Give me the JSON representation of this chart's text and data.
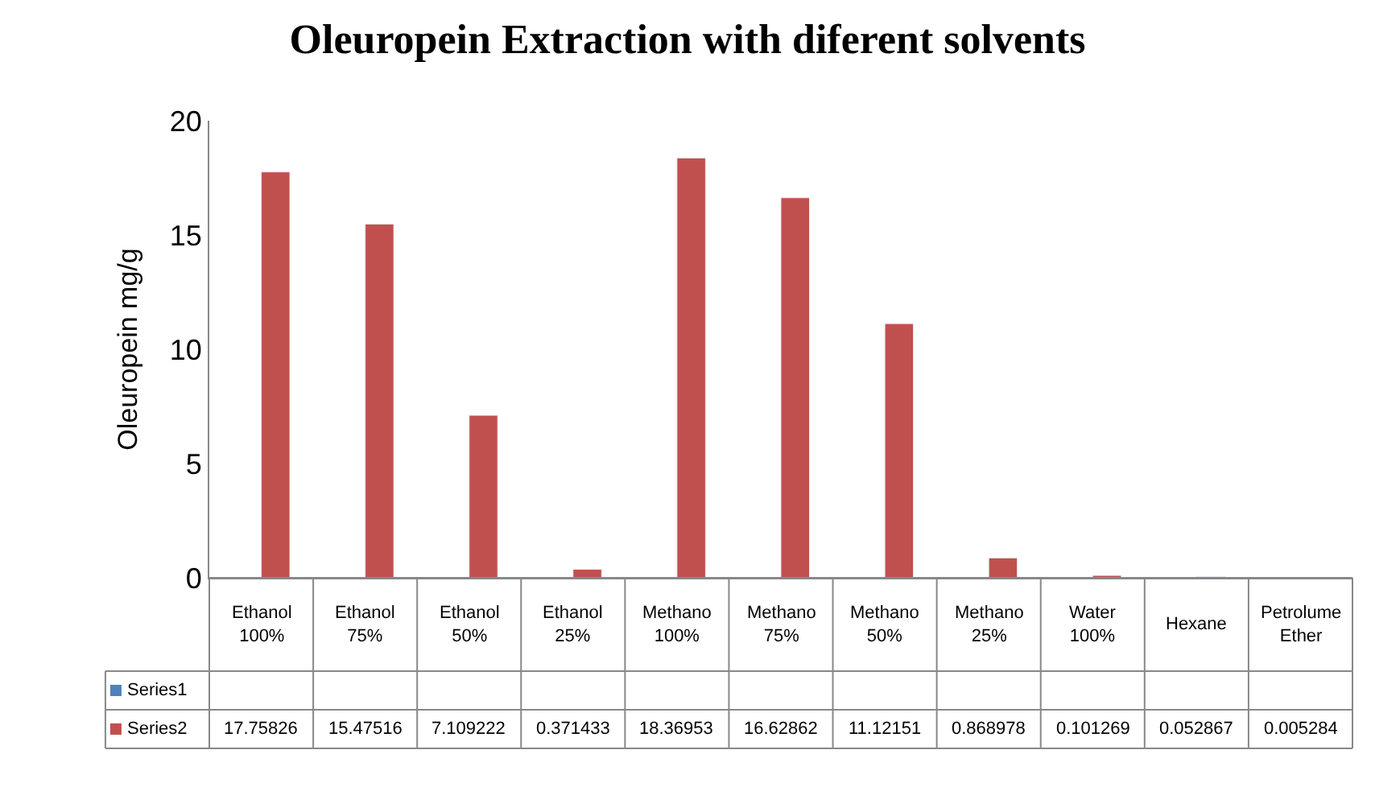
{
  "chart_data": {
    "type": "bar",
    "title": "Oleuropein Extraction with diferent solvents",
    "ylabel": "Oleuropein mg/g",
    "categories": [
      "Ethanol 100%",
      "Ethanol 75%",
      "Ethanol 50%",
      "Ethanol 25%",
      "Methano 100%",
      "Methano 75%",
      "Methano 50%",
      "Methano 25%",
      "Water 100%",
      "Hexane",
      "Petrolume Ether"
    ],
    "series": [
      {
        "name": "Series1",
        "color": "#4f81bd",
        "values": [
          null,
          null,
          null,
          null,
          null,
          null,
          null,
          null,
          null,
          null,
          null
        ]
      },
      {
        "name": "Series2",
        "color": "#c0504d",
        "values": [
          17.75826,
          15.47516,
          7.109222,
          0.371433,
          18.36953,
          16.62862,
          11.12151,
          0.868978,
          0.101269,
          0.052867,
          0.005284
        ]
      }
    ],
    "ylim": [
      0,
      20
    ],
    "yticks": [
      0,
      5,
      10,
      15,
      20
    ],
    "data_labels": true
  }
}
